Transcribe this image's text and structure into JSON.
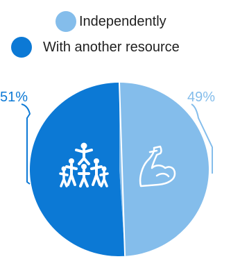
{
  "colors": {
    "independently": "#84BDEB",
    "with_resource": "#0C79D5"
  },
  "icons": {
    "left_slice": "group-teamwork-icon",
    "right_slice": "flexed-arm-icon"
  },
  "chart_data": {
    "type": "pie",
    "legend_position": "top",
    "slices": [
      {
        "label": "Independently",
        "value": 49,
        "value_label": "49%",
        "color": "#84BDEB"
      },
      {
        "label": "With another resource",
        "value": 51,
        "value_label": "51%",
        "color": "#0C79D5"
      }
    ]
  }
}
